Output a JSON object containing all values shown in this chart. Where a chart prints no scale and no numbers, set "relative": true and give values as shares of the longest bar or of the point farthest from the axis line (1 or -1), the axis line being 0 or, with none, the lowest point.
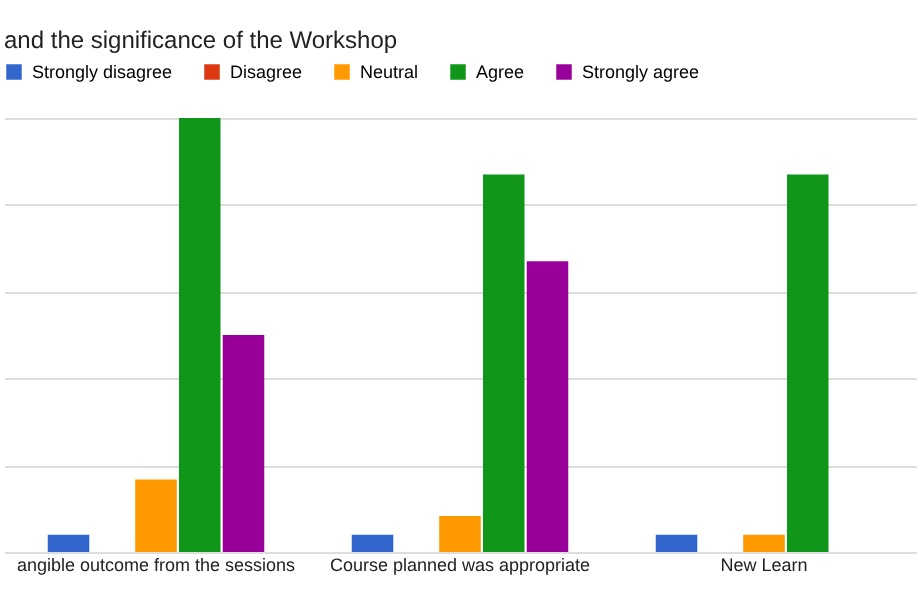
{
  "chart_data": {
    "type": "bar",
    "title": "and the significance of the Workshop",
    "relative": true,
    "grid": "y",
    "legend": "top",
    "categories": [
      "angible outcome from the sessions",
      "Course planned was appropriate",
      "New Learn"
    ],
    "series": [
      {
        "name": "Strongly disagree",
        "color": "#3366cc",
        "values": [
          0.04,
          0.04,
          0.04
        ]
      },
      {
        "name": "Disagree",
        "color": "#dc3912",
        "values": [
          0,
          0,
          0
        ]
      },
      {
        "name": "Neutral",
        "color": "#ff9900",
        "values": [
          0.167,
          0.083,
          0.04
        ]
      },
      {
        "name": "Agree",
        "color": "#109618",
        "values": [
          1,
          0.87,
          0.87
        ]
      },
      {
        "name": "Strongly agree",
        "color": "#990099",
        "values": [
          0.5,
          0.67,
          null
        ]
      }
    ]
  }
}
